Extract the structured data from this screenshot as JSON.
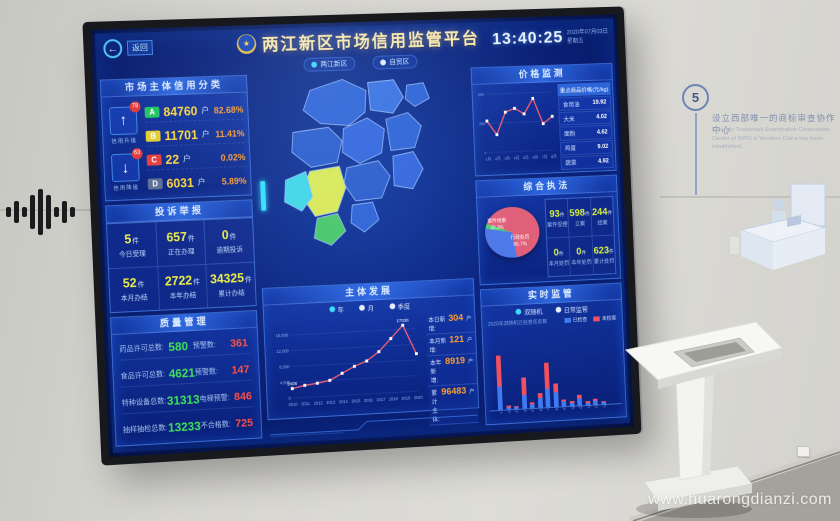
{
  "scene": {
    "watermark": "www.huarongdianzi.com",
    "wall": {
      "step_number": "5",
      "zh": "设立西部唯一的商标审查协作中心",
      "en": "The only Trademark Examination Cooperation Center of NIPO in Western China has been established."
    }
  },
  "dashboard": {
    "back_label": "返回",
    "icons": {
      "back": "←",
      "up": "↑",
      "down": "↓",
      "star": "★"
    },
    "header": {
      "title": "两江新区市场信用监管平台",
      "area_toggles": [
        {
          "label": "两江新区"
        },
        {
          "label": "自贸区"
        }
      ],
      "time": "13:40:25",
      "date": "2020年07月03日",
      "weekday": "星期五"
    },
    "credit_panel": {
      "title": "市场主体信用分类",
      "upgrade": {
        "label": "信用升级",
        "badge": "78"
      },
      "downgrade": {
        "label": "信用降级",
        "badge": "63"
      },
      "grades": [
        {
          "grade": "A",
          "count": "84760",
          "unit": "户",
          "percent": "82.68%",
          "color": "#21c45f"
        },
        {
          "grade": "B",
          "count": "11701",
          "unit": "户",
          "percent": "11.41%",
          "color": "#e4cf2e"
        },
        {
          "grade": "C",
          "count": "22",
          "unit": "户",
          "percent": "0.02%",
          "color": "#e63c3c"
        },
        {
          "grade": "D",
          "count": "6031",
          "unit": "户",
          "percent": "5.89%",
          "color": "#5d6f94"
        }
      ]
    },
    "complaints_panel": {
      "title": "投诉举报",
      "cells": [
        {
          "value": "5",
          "unit": "件",
          "label": "今日受理"
        },
        {
          "value": "657",
          "unit": "件",
          "label": "正在办理"
        },
        {
          "value": "0",
          "unit": "件",
          "label": "逾期投诉"
        },
        {
          "value": "52",
          "unit": "件",
          "label": "本月办结"
        },
        {
          "value": "2722",
          "unit": "件",
          "label": "本年办结"
        },
        {
          "value": "34325",
          "unit": "件",
          "label": "累计办结"
        }
      ]
    },
    "quality_panel": {
      "title": "质量管理",
      "rows": [
        {
          "label": "药品许可总数:",
          "value": "580",
          "label2": "预警数:",
          "value2": "361"
        },
        {
          "label": "食品许可总数:",
          "value": "4621",
          "label2": "预警数:",
          "value2": "147"
        },
        {
          "label": "特种设备总数:",
          "value": "31313",
          "label2": "电梯预警:",
          "value2": "846"
        },
        {
          "label": "抽样抽检总数:",
          "value": "13233",
          "label2": "不合格数:",
          "value2": "725"
        }
      ]
    },
    "development_panel": {
      "title": "主体发展",
      "tabs": [
        "年",
        "月",
        "季度"
      ],
      "stats": [
        {
          "label": "本日新增:",
          "value": "304",
          "unit": "户"
        },
        {
          "label": "本月新增:",
          "value": "121",
          "unit": "户"
        },
        {
          "label": "本年新增:",
          "value": "8919",
          "unit": "户"
        },
        {
          "label": "累计主体:",
          "value": "96483",
          "unit": "户"
        }
      ]
    },
    "price_panel": {
      "title": "价格监测",
      "list_header": "重点商品价格(元/kg)",
      "items": [
        {
          "name": "食用油",
          "value": "19.92"
        },
        {
          "name": "大米",
          "value": "4.02"
        },
        {
          "name": "面粉",
          "value": "4.62"
        },
        {
          "name": "鸡蛋",
          "value": "9.02"
        },
        {
          "name": "蔬菜",
          "value": "4.92"
        }
      ]
    },
    "enforcement_panel": {
      "title": "综合执法",
      "cells": [
        {
          "value": "93",
          "unit": "件",
          "label": "案件受理"
        },
        {
          "value": "598",
          "unit": "件",
          "label": "立案"
        },
        {
          "value": "244",
          "unit": "件",
          "label": "结案"
        },
        {
          "value": "0",
          "unit": "件",
          "label": "本月处罚"
        },
        {
          "value": "0",
          "unit": "件",
          "label": "本年处罚"
        },
        {
          "value": "623",
          "unit": "件",
          "label": "累计处罚"
        }
      ]
    },
    "supervision_panel": {
      "title": "实时监管",
      "toggles": [
        "双随机",
        "日常监管"
      ],
      "sub_label": "2020年双随机已检查任务数"
    }
  },
  "chart_data": [
    {
      "id": "entity-development",
      "type": "line",
      "title": "主体发展",
      "x": [
        "2010",
        "2011",
        "2012",
        "2013",
        "2014",
        "2015",
        "2016",
        "2017",
        "2018",
        "2019",
        "2020"
      ],
      "values": [
        2408,
        3050,
        3420,
        3980,
        5600,
        7200,
        8400,
        10600,
        13800,
        17038,
        9600
      ],
      "point_labels": [
        {
          "x": "2010",
          "text": "2408"
        },
        {
          "x": "2019",
          "text": "17038"
        }
      ],
      "ylim": [
        0,
        18000
      ],
      "yticks": [
        0,
        4000,
        8000,
        12000,
        16000
      ],
      "line_color": "#ff5f6e",
      "legend_position": "top"
    },
    {
      "id": "price-trend",
      "type": "line",
      "title": "价格监测",
      "x": [
        "1月",
        "2月",
        "3月",
        "4月",
        "5月",
        "6月",
        "7月",
        "8月"
      ],
      "values": [
        270,
        150,
        340,
        370,
        320,
        450,
        230,
        290
      ],
      "ylim": [
        0,
        500
      ],
      "yticks": [
        0,
        250,
        500
      ],
      "line_color": "#ff5f6e"
    },
    {
      "id": "enforcement-pie",
      "type": "pie",
      "title": "综合执法",
      "slices": [
        {
          "label": "行政处罚",
          "value": 66.7,
          "pct": "66.7%",
          "color": "#e0607a"
        },
        {
          "label": "案件线索",
          "value": 30.3,
          "pct": "30.3%",
          "color": "#4e79e8"
        },
        {
          "label": "其他",
          "value": 3.0,
          "pct": "3%",
          "color": "#4ad070"
        }
      ]
    },
    {
      "id": "supervision-bars",
      "type": "bar",
      "stacked": true,
      "title": "实时监管",
      "categories": [
        "1",
        "2",
        "3",
        "4",
        "5",
        "6",
        "7",
        "8",
        "9",
        "10",
        "11",
        "12",
        "13",
        "14"
      ],
      "series": [
        {
          "name": "已检查",
          "color": "#3f7bf0",
          "values": [
            38,
            4,
            3,
            22,
            6,
            16,
            30,
            24,
            8,
            5,
            12,
            4,
            6,
            3
          ]
        },
        {
          "name": "未检查",
          "color": "#f05060",
          "values": [
            52,
            2,
            2,
            30,
            4,
            8,
            44,
            14,
            4,
            3,
            6,
            2,
            3,
            2
          ]
        }
      ]
    }
  ]
}
